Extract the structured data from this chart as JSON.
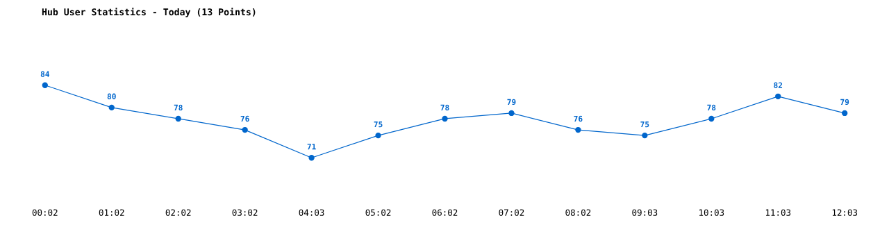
{
  "chart_data": {
    "type": "line",
    "title": "Hub User Statistics - Today (13 Points)",
    "categories": [
      "00:02",
      "01:02",
      "02:02",
      "03:02",
      "04:03",
      "05:02",
      "06:02",
      "07:02",
      "08:02",
      "09:03",
      "10:03",
      "11:03",
      "12:03"
    ],
    "series": [
      {
        "color": "#0066cc",
        "values": [
          84,
          80,
          78,
          76,
          71,
          75,
          78,
          79,
          76,
          75,
          78,
          82,
          79
        ]
      }
    ],
    "data_labels": true,
    "marker": "circle",
    "line_style": "solid",
    "grid": false,
    "legend": false
  }
}
